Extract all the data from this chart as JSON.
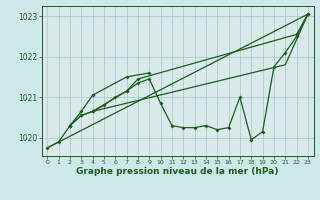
{
  "background_color": "#cde8e8",
  "plot_bg_color": "#daeaea",
  "grid_color": "#a0c8c8",
  "line_color": "#1a5e1a",
  "title": "Graphe pression niveau de la mer (hPa)",
  "xlim": [
    -0.5,
    23.5
  ],
  "ylim": [
    1019.55,
    1023.25
  ],
  "yticks": [
    1020,
    1021,
    1022,
    1023
  ],
  "xticks": [
    0,
    1,
    2,
    3,
    4,
    5,
    6,
    7,
    8,
    9,
    10,
    11,
    12,
    13,
    14,
    15,
    16,
    17,
    18,
    19,
    20,
    21,
    22,
    23
  ],
  "line1_x": [
    0,
    1,
    2,
    3,
    4,
    5,
    6,
    7,
    8,
    9,
    10,
    11,
    12,
    13,
    14,
    15,
    16,
    17,
    18,
    19,
    20,
    21,
    22,
    23
  ],
  "line1_y": [
    1019.75,
    1019.9,
    1020.3,
    1020.55,
    1020.65,
    1020.8,
    1021.0,
    1021.15,
    1021.35,
    1021.45,
    1020.85,
    1020.3,
    1020.25,
    1020.25,
    1020.3,
    1020.2,
    1020.25,
    1021.0,
    1019.95,
    1020.15,
    1021.75,
    1022.1,
    1022.5,
    1023.05
  ],
  "line2_x": [
    0,
    23
  ],
  "line2_y": [
    1019.75,
    1023.05
  ],
  "line3_x": [
    2,
    3,
    4,
    7,
    8,
    22,
    23
  ],
  "line3_y": [
    1020.3,
    1020.55,
    1020.65,
    1021.15,
    1021.45,
    1022.55,
    1023.05
  ],
  "line4_x": [
    2,
    3,
    4,
    7,
    9
  ],
  "line4_y": [
    1020.3,
    1020.65,
    1021.05,
    1021.5,
    1021.6
  ],
  "line5_x": [
    4,
    21,
    23
  ],
  "line5_y": [
    1020.65,
    1021.8,
    1023.05
  ]
}
